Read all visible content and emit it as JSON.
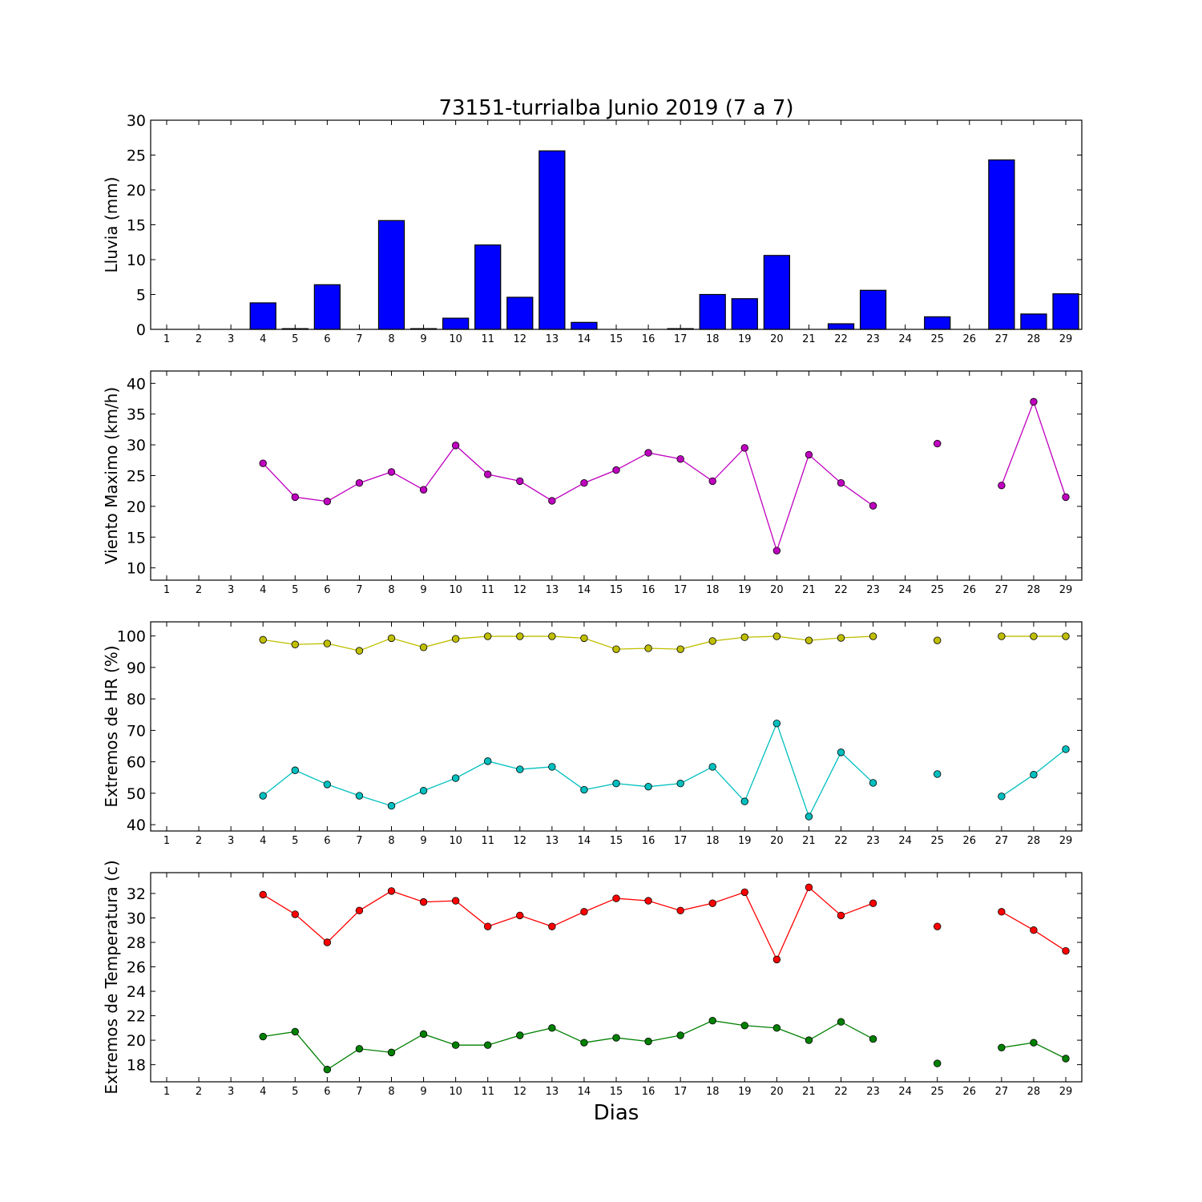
{
  "title": "73151-turrialba Junio 2019  (7 a 7)",
  "xlabel": "Dias",
  "colors": {
    "rain": "#0000ff",
    "wind": "#bf00bf",
    "hr_max": "#bfbf00",
    "hr_min": "#00bfbf",
    "temp_max": "#ff0000",
    "temp_min": "#008000"
  },
  "chart_data": [
    {
      "type": "bar",
      "ylabel": "Lluvia (mm)",
      "ylim": [
        0,
        30
      ],
      "yticks": [
        0,
        5,
        10,
        15,
        20,
        25,
        30
      ],
      "categories": [
        1,
        2,
        3,
        4,
        5,
        6,
        7,
        8,
        9,
        10,
        11,
        12,
        13,
        14,
        15,
        16,
        17,
        18,
        19,
        20,
        21,
        22,
        23,
        24,
        25,
        26,
        27,
        28,
        29
      ],
      "series": [
        {
          "values": [
            0,
            0,
            0,
            3.8,
            0.1,
            6.4,
            0,
            15.6,
            0.1,
            1.6,
            12.1,
            4.6,
            25.6,
            1.0,
            0,
            0,
            0.1,
            5.0,
            4.4,
            10.6,
            0,
            0.8,
            5.6,
            0,
            1.8,
            0,
            24.3,
            2.2,
            5.1
          ]
        }
      ]
    },
    {
      "type": "line",
      "ylabel": "Viento Maximo (km/h)",
      "ylim": [
        8,
        42
      ],
      "yticks": [
        10,
        15,
        20,
        25,
        30,
        35,
        40
      ],
      "x": [
        1,
        2,
        3,
        4,
        5,
        6,
        7,
        8,
        9,
        10,
        11,
        12,
        13,
        14,
        15,
        16,
        17,
        18,
        19,
        20,
        21,
        22,
        23,
        24,
        25,
        26,
        27,
        28,
        29
      ],
      "series": [
        {
          "values": [
            null,
            null,
            null,
            27.0,
            21.5,
            20.8,
            23.8,
            25.6,
            22.7,
            29.9,
            25.2,
            24.1,
            20.9,
            23.8,
            25.9,
            28.7,
            27.7,
            24.1,
            29.5,
            12.8,
            28.4,
            23.8,
            20.1,
            null,
            30.2,
            null,
            23.4,
            37.0,
            21.5
          ]
        }
      ]
    },
    {
      "type": "line",
      "ylabel": "Extremos de HR (%)",
      "ylim": [
        38,
        104.5
      ],
      "yticks": [
        40,
        50,
        60,
        70,
        80,
        90,
        100
      ],
      "x": [
        1,
        2,
        3,
        4,
        5,
        6,
        7,
        8,
        9,
        10,
        11,
        12,
        13,
        14,
        15,
        16,
        17,
        18,
        19,
        20,
        21,
        22,
        23,
        24,
        25,
        26,
        27,
        28,
        29
      ],
      "series": [
        {
          "values": [
            null,
            null,
            null,
            98.8,
            97.3,
            97.6,
            95.3,
            99.3,
            96.4,
            99.1,
            99.9,
            99.9,
            99.9,
            99.3,
            95.8,
            96.1,
            95.8,
            98.4,
            99.6,
            99.9,
            98.6,
            99.4,
            99.9,
            null,
            98.6,
            null,
            99.9,
            99.9,
            99.9
          ]
        },
        {
          "values": [
            null,
            null,
            null,
            49.2,
            57.3,
            52.8,
            49.2,
            46.0,
            50.8,
            54.8,
            60.2,
            57.6,
            58.4,
            51.1,
            53.1,
            52.1,
            53.1,
            58.4,
            47.4,
            72.2,
            42.6,
            63.0,
            53.3,
            null,
            56.1,
            null,
            49.0,
            55.9,
            64.0
          ]
        }
      ]
    },
    {
      "type": "line",
      "ylabel": "Extremos de Temperatura (c)",
      "ylim": [
        16.6,
        33.7
      ],
      "yticks": [
        18,
        20,
        22,
        24,
        26,
        28,
        30,
        32
      ],
      "x": [
        1,
        2,
        3,
        4,
        5,
        6,
        7,
        8,
        9,
        10,
        11,
        12,
        13,
        14,
        15,
        16,
        17,
        18,
        19,
        20,
        21,
        22,
        23,
        24,
        25,
        26,
        27,
        28,
        29
      ],
      "series": [
        {
          "values": [
            null,
            null,
            null,
            31.9,
            30.3,
            28.0,
            30.6,
            32.2,
            31.3,
            31.4,
            29.3,
            30.2,
            29.3,
            30.5,
            31.6,
            31.4,
            30.6,
            31.2,
            32.1,
            26.6,
            32.5,
            30.2,
            31.2,
            null,
            29.3,
            null,
            30.5,
            29.0,
            27.3
          ]
        },
        {
          "values": [
            null,
            null,
            null,
            20.3,
            20.7,
            17.6,
            19.3,
            19.0,
            20.5,
            19.6,
            19.6,
            20.4,
            21.0,
            19.8,
            20.2,
            19.9,
            20.4,
            21.6,
            21.2,
            21.0,
            20.0,
            21.5,
            20.1,
            null,
            18.1,
            null,
            19.4,
            19.8,
            18.5
          ]
        }
      ]
    }
  ]
}
